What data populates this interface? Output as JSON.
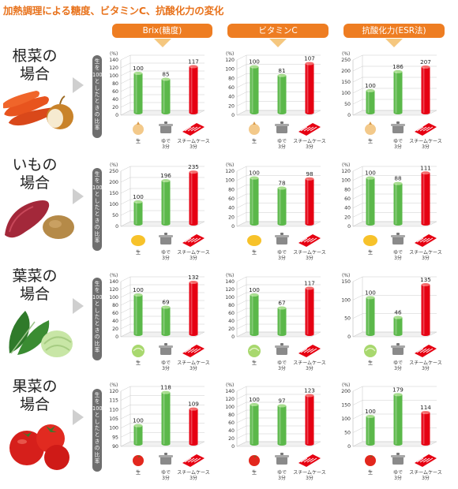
{
  "page": {
    "title": "加熱調理による糖度、ビタミンC、抗酸化力の変化",
    "ratio_label": "生を100%としたときの比率"
  },
  "columns": [
    {
      "label": "Brix(糖度)",
      "color": "#ee7d22"
    },
    {
      "label": "ビタミンC",
      "color": "#ee7d22"
    },
    {
      "label": "抗酸化力(ESR法)",
      "color": "#ee7d22"
    }
  ],
  "rows": [
    {
      "name_line1": "根菜の",
      "name_line2": "場合",
      "raw_icon": "onion-icon"
    },
    {
      "name_line1": "いもの",
      "name_line2": "場合",
      "raw_icon": "potato-icon"
    },
    {
      "name_line1": "葉菜の",
      "name_line2": "場合",
      "raw_icon": "cabbage-icon"
    },
    {
      "name_line1": "果菜の",
      "name_line2": "場合",
      "raw_icon": "tomato-icon"
    }
  ],
  "methods": [
    {
      "label_lines": [
        "生"
      ],
      "icon": "raw-vegetable-icon"
    },
    {
      "label_lines": [
        "ゆで",
        "3分"
      ],
      "icon": "pot-icon"
    },
    {
      "label_lines": [
        "スチームケース",
        "3分"
      ],
      "icon": "steam-case-icon"
    }
  ],
  "colors": {
    "bar_green": "#5bb84a",
    "bar_red": "#e60012",
    "accent_orange": "#ee7d22",
    "title_orange": "#e8731d"
  },
  "chart_data": [
    {
      "type": "bar",
      "row": "根菜の場合",
      "metric": "Brix(糖度)",
      "unit": "(%)",
      "categories": [
        "生",
        "ゆで3分",
        "スチームケース3分"
      ],
      "values": [
        100,
        85,
        117
      ],
      "yticks": [
        0,
        20,
        40,
        60,
        80,
        100,
        120,
        140
      ],
      "ylim": [
        0,
        140
      ]
    },
    {
      "type": "bar",
      "row": "根菜の場合",
      "metric": "ビタミンC",
      "unit": "(%)",
      "categories": [
        "生",
        "ゆで3分",
        "スチームケース3分"
      ],
      "values": [
        100,
        81,
        107
      ],
      "yticks": [
        0,
        20,
        40,
        60,
        80,
        100,
        120
      ],
      "ylim": [
        0,
        120
      ]
    },
    {
      "type": "bar",
      "row": "根菜の場合",
      "metric": "抗酸化力(ESR法)",
      "unit": "(%)",
      "categories": [
        "生",
        "ゆで3分",
        "スチームケース3分"
      ],
      "values": [
        100,
        186,
        207
      ],
      "yticks": [
        0,
        50,
        100,
        150,
        200,
        250
      ],
      "ylim": [
        0,
        250
      ]
    },
    {
      "type": "bar",
      "row": "いもの場合",
      "metric": "Brix(糖度)",
      "unit": "(%)",
      "categories": [
        "生",
        "ゆで3分",
        "スチームケース3分"
      ],
      "values": [
        100,
        196,
        235
      ],
      "yticks": [
        0,
        50,
        100,
        150,
        200,
        250
      ],
      "ylim": [
        0,
        250
      ]
    },
    {
      "type": "bar",
      "row": "いもの場合",
      "metric": "ビタミンC",
      "unit": "(%)",
      "categories": [
        "生",
        "ゆで3分",
        "スチームケース3分"
      ],
      "values": [
        100,
        78,
        98
      ],
      "yticks": [
        0,
        20,
        40,
        60,
        80,
        100,
        120
      ],
      "ylim": [
        0,
        120
      ]
    },
    {
      "type": "bar",
      "row": "いもの場合",
      "metric": "抗酸化力(ESR法)",
      "unit": "(%)",
      "categories": [
        "生",
        "ゆで3分",
        "スチームケース3分"
      ],
      "values": [
        100,
        88,
        111
      ],
      "yticks": [
        0,
        20,
        40,
        60,
        80,
        100,
        120
      ],
      "ylim": [
        0,
        120
      ]
    },
    {
      "type": "bar",
      "row": "葉菜の場合",
      "metric": "Brix(糖度)",
      "unit": "(%)",
      "categories": [
        "生",
        "ゆで3分",
        "スチームケース3分"
      ],
      "values": [
        100,
        69,
        132
      ],
      "yticks": [
        0,
        20,
        40,
        60,
        80,
        100,
        120,
        140
      ],
      "ylim": [
        0,
        140
      ]
    },
    {
      "type": "bar",
      "row": "葉菜の場合",
      "metric": "ビタミンC",
      "unit": "(%)",
      "categories": [
        "生",
        "ゆで3分",
        "スチームケース3分"
      ],
      "values": [
        100,
        67,
        117
      ],
      "yticks": [
        0,
        20,
        40,
        60,
        80,
        100,
        120,
        140
      ],
      "ylim": [
        0,
        140
      ]
    },
    {
      "type": "bar",
      "row": "葉菜の場合",
      "metric": "抗酸化力(ESR法)",
      "unit": "(%)",
      "categories": [
        "生",
        "ゆで3分",
        "スチームケース3分"
      ],
      "values": [
        100,
        46,
        135
      ],
      "yticks": [
        0,
        50,
        100,
        150
      ],
      "ylim": [
        0,
        150
      ]
    },
    {
      "type": "bar",
      "row": "果菜の場合",
      "metric": "Brix(糖度)",
      "unit": "(%)",
      "categories": [
        "生",
        "ゆで3分",
        "スチームケース3分"
      ],
      "values": [
        100,
        118,
        109
      ],
      "yticks": [
        90,
        95,
        100,
        105,
        110,
        115,
        120
      ],
      "ylim": [
        90,
        120
      ]
    },
    {
      "type": "bar",
      "row": "果菜の場合",
      "metric": "ビタミンC",
      "unit": "(%)",
      "categories": [
        "生",
        "ゆで3分",
        "スチームケース3分"
      ],
      "values": [
        100,
        97,
        123
      ],
      "yticks": [
        0,
        20,
        40,
        60,
        80,
        100,
        120,
        140
      ],
      "ylim": [
        0,
        140
      ]
    },
    {
      "type": "bar",
      "row": "果菜の場合",
      "metric": "抗酸化力(ESR法)",
      "unit": "(%)",
      "categories": [
        "生",
        "ゆで3分",
        "スチームケース3分"
      ],
      "values": [
        100,
        179,
        114
      ],
      "yticks": [
        0,
        50,
        100,
        150,
        200
      ],
      "ylim": [
        0,
        200
      ]
    }
  ]
}
